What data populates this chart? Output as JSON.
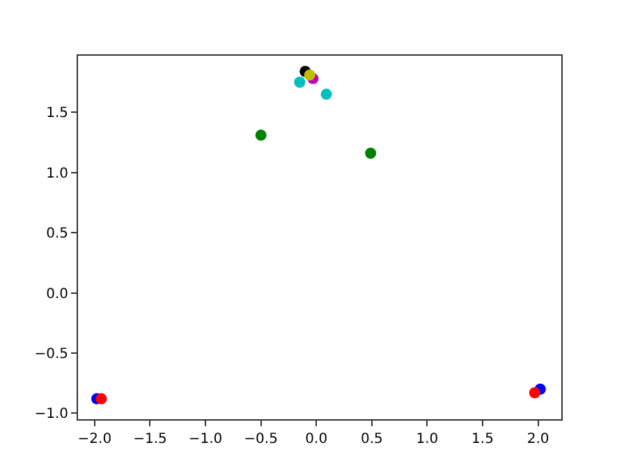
{
  "chart_data": {
    "type": "scatter",
    "marker": "circle",
    "xlim": [
      -2.15,
      2.21
    ],
    "ylim": [
      -1.05,
      1.97
    ],
    "xticks": [
      {
        "value": -2,
        "label": "−2.0"
      },
      {
        "value": -1.5,
        "label": "−1.5"
      },
      {
        "value": -1,
        "label": "−1.0"
      },
      {
        "value": -0.5,
        "label": "−0.5"
      },
      {
        "value": 0,
        "label": "0.0"
      },
      {
        "value": 0.5,
        "label": "0.5"
      },
      {
        "value": 1,
        "label": "1.0"
      },
      {
        "value": 1.5,
        "label": "1.5"
      },
      {
        "value": 2,
        "label": "2.0"
      }
    ],
    "yticks": [
      {
        "value": -1,
        "label": "−1.0"
      },
      {
        "value": -0.5,
        "label": "−0.5"
      },
      {
        "value": 0,
        "label": "0.0"
      },
      {
        "value": 0.5,
        "label": "0.5"
      },
      {
        "value": 1,
        "label": "1.0"
      },
      {
        "value": 1.5,
        "label": "1.5"
      }
    ],
    "series": [
      {
        "color": "#000000",
        "x": [
          -0.1
        ],
        "values": [
          1.84
        ]
      },
      {
        "color": "#00bfbf",
        "x": [
          -0.15,
          0.09
        ],
        "values": [
          1.75,
          1.65
        ]
      },
      {
        "color": "#bf00bf",
        "x": [
          -0.03
        ],
        "values": [
          1.78
        ]
      },
      {
        "color": "#bfbf00",
        "x": [
          -0.06
        ],
        "values": [
          1.81
        ]
      },
      {
        "color": "#008000",
        "x": [
          -0.5,
          0.49
        ],
        "values": [
          1.31,
          1.16
        ]
      },
      {
        "color": "#0000ff",
        "x": [
          -1.98,
          2.02
        ],
        "values": [
          -0.88,
          -0.8
        ]
      },
      {
        "color": "#ff0000",
        "x": [
          -1.94,
          1.97
        ],
        "values": [
          -0.88,
          -0.83
        ]
      }
    ]
  }
}
